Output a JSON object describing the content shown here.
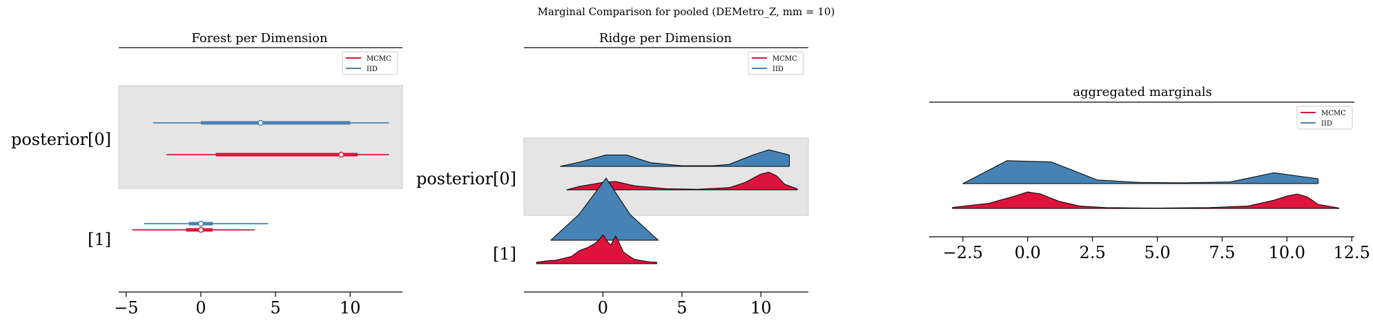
{
  "figure": {
    "suptitle": "Marginal Comparison for pooled (DEMetro_Z, mm = 10)"
  },
  "colors": {
    "mcmc": "#dc143c",
    "iid": "#4682b4",
    "band": "#e5e5e5",
    "band_edge": "#cccccc"
  },
  "chart_data": [
    {
      "type": "forest",
      "title": "Forest per Dimension",
      "xlabel": "",
      "ylabel": "",
      "xlim": [
        -5.5,
        13.5
      ],
      "xticks": [
        -5,
        0,
        5,
        10
      ],
      "xtick_labels": [
        "−5",
        "0",
        "5",
        "10"
      ],
      "ylabels": [
        "posterior[0]",
        "[1]"
      ],
      "legend": {
        "placement": "upper-right",
        "entries": [
          "MCMC",
          "IID"
        ]
      },
      "series": [
        {
          "name": "IID",
          "color": "#4682b4",
          "dims": [
            {
              "dim": "posterior[0]",
              "hdi94": [
                -3.2,
                12.6
              ],
              "hdi50": [
                0.0,
                10.0
              ],
              "median": 4.0
            },
            {
              "dim": "[1]",
              "hdi94": [
                -3.8,
                4.5
              ],
              "hdi50": [
                -0.8,
                0.8
              ],
              "median": 0.0
            }
          ]
        },
        {
          "name": "MCMC",
          "color": "#dc143c",
          "dims": [
            {
              "dim": "posterior[0]",
              "hdi94": [
                -2.3,
                12.6
              ],
              "hdi50": [
                1.0,
                10.5
              ],
              "median": 9.4
            },
            {
              "dim": "[1]",
              "hdi94": [
                -4.6,
                3.6
              ],
              "hdi50": [
                -1.0,
                0.8
              ],
              "median": 0.0
            }
          ]
        }
      ]
    },
    {
      "type": "ridge",
      "title": "Ridge per Dimension",
      "xlabel": "",
      "ylabel": "",
      "xlim": [
        -5.0,
        13.0
      ],
      "xticks": [
        0,
        5,
        10
      ],
      "xtick_labels": [
        "0",
        "5",
        "10"
      ],
      "ylabels": [
        "posterior[0]",
        "[1]"
      ],
      "legend": {
        "placement": "upper-right",
        "entries": [
          "MCMC",
          "IID"
        ]
      },
      "series": [
        {
          "name": "IID",
          "color": "#4682b4",
          "dims": [
            {
              "dim": "posterior[0]",
              "x": [
                -2.7,
                -1.5,
                0.2,
                1.5,
                3.0,
                5.0,
                7.0,
                8.0,
                9.5,
                10.5,
                11.8
              ],
              "density": [
                0.0,
                0.2,
                0.55,
                0.55,
                0.18,
                0.03,
                0.03,
                0.1,
                0.55,
                0.8,
                0.55
              ]
            },
            {
              "dim": "[1]",
              "x": [
                -3.3,
                -1.5,
                0.2,
                1.7,
                3.5
              ],
              "density": [
                0.0,
                0.42,
                1.0,
                0.42,
                0.0
              ]
            }
          ]
        },
        {
          "name": "MCMC",
          "color": "#dc143c",
          "dims": [
            {
              "dim": "posterior[0]",
              "x": [
                -2.3,
                -1.5,
                0.0,
                0.8,
                2.0,
                4.0,
                6.0,
                8.0,
                9.0,
                10.0,
                10.5,
                11.0,
                11.5,
                12.3
              ],
              "density": [
                0.0,
                0.18,
                0.4,
                0.45,
                0.22,
                0.06,
                0.03,
                0.12,
                0.4,
                0.85,
                0.95,
                0.75,
                0.3,
                0.05
              ]
            },
            {
              "dim": "[1]",
              "x": [
                -4.2,
                -3.5,
                -3.0,
                -2.5,
                -2.0,
                -1.5,
                -1.0,
                -0.5,
                -0.2,
                0.0,
                0.3,
                0.5,
                0.8,
                1.0,
                1.3,
                1.7,
                2.0,
                2.5,
                3.0,
                3.4
              ],
              "density": [
                0.05,
                0.1,
                0.12,
                0.18,
                0.25,
                0.45,
                0.55,
                0.7,
                0.85,
                1.0,
                0.75,
                0.65,
                0.95,
                0.75,
                0.4,
                0.25,
                0.15,
                0.1,
                0.06,
                0.05
              ]
            }
          ]
        }
      ]
    },
    {
      "type": "ridge",
      "title": "aggregated marginals",
      "xlabel": "",
      "ylabel": "",
      "xlim": [
        -3.8,
        12.6
      ],
      "xticks": [
        -2.5,
        0.0,
        2.5,
        5.0,
        7.5,
        10.0,
        12.5
      ],
      "xtick_labels": [
        "−2.5",
        "0.0",
        "2.5",
        "5.0",
        "7.5",
        "10.0",
        "12.5"
      ],
      "legend": {
        "placement": "upper-right",
        "entries": [
          "MCMC",
          "IID"
        ]
      },
      "series": [
        {
          "name": "IID",
          "color": "#4682b4",
          "x": [
            -2.5,
            -0.8,
            0.9,
            2.7,
            4.3,
            6.0,
            7.8,
            9.5,
            11.2
          ],
          "density": [
            0.0,
            0.95,
            0.9,
            0.15,
            0.05,
            0.03,
            0.07,
            0.45,
            0.2
          ]
        },
        {
          "name": "MCMC",
          "color": "#dc143c",
          "x": [
            -2.9,
            -1.5,
            -0.5,
            0.0,
            0.5,
            1.2,
            2.0,
            3.0,
            5.0,
            7.0,
            8.5,
            9.5,
            10.0,
            10.4,
            10.8,
            11.2,
            12.0
          ],
          "density": [
            0.05,
            0.25,
            0.6,
            0.8,
            0.7,
            0.35,
            0.12,
            0.04,
            0.02,
            0.04,
            0.12,
            0.4,
            0.6,
            0.7,
            0.55,
            0.2,
            0.02
          ]
        }
      ]
    }
  ]
}
